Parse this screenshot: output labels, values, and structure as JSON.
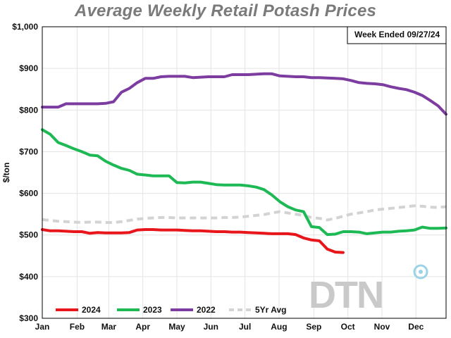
{
  "chart_data": {
    "type": "line",
    "title": "Average Weekly Retail Potash Prices",
    "ylabel": "$/ton",
    "xlabel": "",
    "note": "Week Ended 09/27/24",
    "ylim": [
      300,
      1000
    ],
    "yticks": [
      300,
      400,
      500,
      600,
      700,
      800,
      900,
      1000
    ],
    "ytick_labels": [
      "$300",
      "$400",
      "$500",
      "$600",
      "$700",
      "$800",
      "$900",
      "$1,000"
    ],
    "x_unit": "week of year",
    "xlim": [
      1,
      52
    ],
    "month_labels": [
      "Jan",
      "Feb",
      "Mar",
      "Apr",
      "May",
      "Jun",
      "Jul",
      "Aug",
      "Sep",
      "Oct",
      "Nov",
      "Dec"
    ],
    "month_tick_weeks": [
      1,
      5.4,
      9.4,
      13.7,
      18,
      22.3,
      26.6,
      30.9,
      35.3,
      39.6,
      43.9,
      48.2
    ],
    "grid": true,
    "legend_position": "bottom-left",
    "logo": "DTN",
    "series": [
      {
        "name": "2024",
        "color": "#e8151b",
        "dashed": false,
        "x": [
          1,
          2,
          3,
          4,
          5,
          6,
          7,
          8,
          9,
          10,
          11,
          12,
          13,
          14,
          15,
          16,
          17,
          18,
          19,
          20,
          21,
          22,
          23,
          24,
          25,
          26,
          27,
          28,
          29,
          30,
          31,
          32,
          33,
          34,
          35,
          36,
          37,
          38,
          39
        ],
        "y": [
          513,
          510,
          510,
          509,
          508,
          508,
          504,
          506,
          505,
          505,
          505,
          506,
          512,
          513,
          513,
          512,
          512,
          512,
          511,
          510,
          510,
          509,
          508,
          508,
          507,
          507,
          506,
          505,
          504,
          503,
          503,
          503,
          501,
          493,
          488,
          486,
          466,
          459,
          458
        ]
      },
      {
        "name": "2023",
        "color": "#1db954",
        "dashed": false,
        "x": [
          1,
          2,
          3,
          4,
          5,
          6,
          7,
          8,
          9,
          10,
          11,
          12,
          13,
          14,
          15,
          16,
          17,
          18,
          19,
          20,
          21,
          22,
          23,
          24,
          25,
          26,
          27,
          28,
          29,
          30,
          31,
          32,
          33,
          34,
          35,
          36,
          37,
          38,
          39,
          40,
          41,
          42,
          43,
          44,
          45,
          46,
          47,
          48,
          49,
          50,
          51,
          52
        ],
        "y": [
          753,
          742,
          722,
          715,
          707,
          700,
          692,
          690,
          677,
          668,
          660,
          655,
          646,
          644,
          642,
          642,
          642,
          626,
          625,
          627,
          627,
          624,
          621,
          620,
          620,
          620,
          618,
          615,
          609,
          596,
          580,
          568,
          560,
          556,
          520,
          518,
          501,
          502,
          508,
          508,
          507,
          503,
          505,
          507,
          507,
          509,
          510,
          512,
          519,
          516,
          516,
          517
        ]
      },
      {
        "name": "2022",
        "color": "#7d3ca0",
        "dashed": false,
        "x": [
          1,
          2,
          3,
          4,
          5,
          6,
          7,
          8,
          9,
          10,
          11,
          12,
          13,
          14,
          15,
          16,
          17,
          18,
          19,
          20,
          21,
          22,
          23,
          24,
          25,
          26,
          27,
          28,
          29,
          30,
          31,
          32,
          33,
          34,
          35,
          36,
          37,
          38,
          39,
          40,
          41,
          42,
          43,
          44,
          45,
          46,
          47,
          48,
          49,
          50,
          51,
          52
        ],
        "y": [
          807,
          807,
          807,
          815,
          815,
          815,
          815,
          815,
          816,
          820,
          843,
          852,
          866,
          876,
          876,
          880,
          881,
          881,
          881,
          878,
          879,
          880,
          880,
          880,
          885,
          885,
          885,
          886,
          887,
          887,
          882,
          881,
          880,
          880,
          878,
          878,
          877,
          876,
          875,
          871,
          866,
          864,
          863,
          861,
          856,
          852,
          849,
          843,
          835,
          823,
          810,
          790
        ]
      },
      {
        "name": "5Yr Avg",
        "color": "#d3d3d3",
        "dashed": true,
        "x": [
          1,
          2,
          3,
          4,
          5,
          6,
          7,
          8,
          9,
          10,
          11,
          12,
          13,
          14,
          15,
          16,
          17,
          18,
          19,
          20,
          21,
          22,
          23,
          24,
          25,
          26,
          27,
          28,
          29,
          30,
          31,
          32,
          33,
          34,
          35,
          36,
          37,
          38,
          39,
          40,
          41,
          42,
          43,
          44,
          45,
          46,
          47,
          48,
          49,
          50,
          51,
          52
        ],
        "y": [
          537,
          535,
          533,
          532,
          531,
          530,
          531,
          531,
          530,
          530,
          532,
          535,
          538,
          540,
          541,
          542,
          542,
          541,
          541,
          541,
          541,
          541,
          541,
          542,
          542,
          543,
          545,
          547,
          549,
          553,
          556,
          553,
          550,
          547,
          542,
          540,
          536,
          540,
          545,
          550,
          553,
          556,
          560,
          562,
          564,
          566,
          568,
          570,
          569,
          567,
          566,
          568
        ]
      }
    ]
  }
}
